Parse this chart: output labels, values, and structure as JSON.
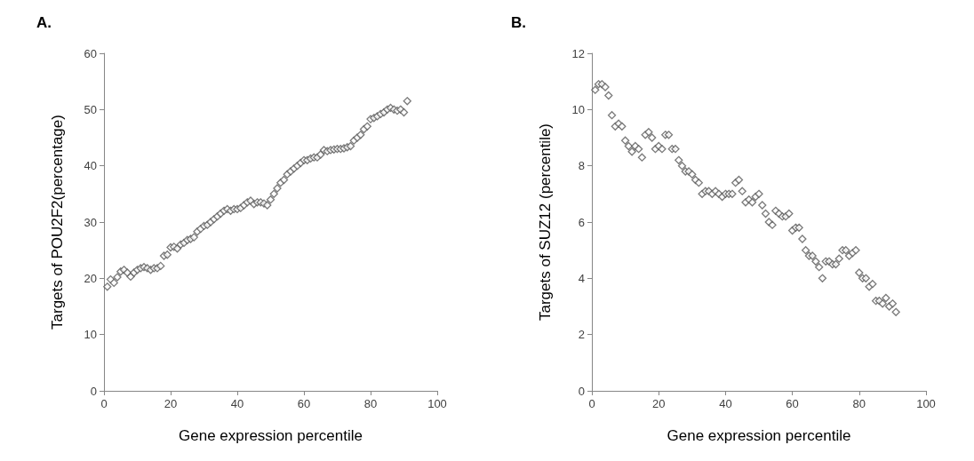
{
  "chart_data": [
    {
      "type": "scatter",
      "title": "A.",
      "xlabel": "Gene expression percentile",
      "ylabel": "Targets of POU2F2(percentage)",
      "marker": "diamond",
      "grid": false,
      "xlim": [
        0,
        100
      ],
      "xticks": [
        0,
        20,
        40,
        60,
        80,
        100
      ],
      "ylim": [
        0,
        60
      ],
      "yticks": [
        0,
        10,
        20,
        30,
        40,
        50,
        60
      ],
      "x": [
        1,
        2,
        3,
        4,
        5,
        6,
        7,
        8,
        9,
        10,
        11,
        12,
        13,
        14,
        15,
        16,
        17,
        18,
        19,
        20,
        21,
        22,
        23,
        24,
        25,
        26,
        27,
        28,
        29,
        30,
        31,
        32,
        33,
        34,
        35,
        36,
        37,
        38,
        39,
        40,
        41,
        42,
        43,
        44,
        45,
        46,
        47,
        48,
        49,
        50,
        51,
        52,
        53,
        54,
        55,
        56,
        57,
        58,
        59,
        60,
        61,
        62,
        63,
        64,
        65,
        66,
        67,
        68,
        69,
        70,
        71,
        72,
        73,
        74,
        75,
        76,
        77,
        78,
        79,
        80,
        81,
        82,
        83,
        84,
        85,
        86,
        87,
        88,
        89,
        90,
        91
      ],
      "series": [
        {
          "color": "#595959",
          "values": [
            18.5,
            19.8,
            19.2,
            20.2,
            21.2,
            21.5,
            21.0,
            20.3,
            21.0,
            21.5,
            21.8,
            22.0,
            21.8,
            21.5,
            21.8,
            21.8,
            22.2,
            24.0,
            24.2,
            25.5,
            25.6,
            25.3,
            26.0,
            26.3,
            26.8,
            27.0,
            27.3,
            28.3,
            28.8,
            29.3,
            29.5,
            30.0,
            30.5,
            31.0,
            31.5,
            32.0,
            32.3,
            32.0,
            32.3,
            32.3,
            32.5,
            33.0,
            33.5,
            33.8,
            33.2,
            33.5,
            33.5,
            33.3,
            33.0,
            34.0,
            35.0,
            36.0,
            37.0,
            37.5,
            38.5,
            39.0,
            39.5,
            40.0,
            40.5,
            41.0,
            41.0,
            41.3,
            41.5,
            41.5,
            42.0,
            42.8,
            42.6,
            42.8,
            42.9,
            43.0,
            43.0,
            43.1,
            43.3,
            43.5,
            44.5,
            45.0,
            45.5,
            46.5,
            47.0,
            48.3,
            48.5,
            48.8,
            49.2,
            49.5,
            50.0,
            50.3,
            50.0,
            49.8,
            50.0,
            49.5,
            51.5
          ]
        }
      ]
    },
    {
      "type": "scatter",
      "title": "B.",
      "xlabel": "Gene expression percentile",
      "ylabel": "Targets of SUZ12 (percentile)",
      "marker": "diamond",
      "grid": false,
      "xlim": [
        0,
        100
      ],
      "xticks": [
        0,
        20,
        40,
        60,
        80,
        100
      ],
      "ylim": [
        0,
        12
      ],
      "yticks": [
        0,
        2,
        4,
        6,
        8,
        10,
        12
      ],
      "x": [
        1,
        2,
        3,
        4,
        5,
        6,
        7,
        8,
        9,
        10,
        11,
        12,
        13,
        14,
        15,
        16,
        17,
        18,
        19,
        20,
        21,
        22,
        23,
        24,
        25,
        26,
        27,
        28,
        29,
        30,
        31,
        32,
        33,
        34,
        35,
        36,
        37,
        38,
        39,
        40,
        41,
        42,
        43,
        44,
        45,
        46,
        47,
        48,
        49,
        50,
        51,
        52,
        53,
        54,
        55,
        56,
        57,
        58,
        59,
        60,
        61,
        62,
        63,
        64,
        65,
        66,
        67,
        68,
        69,
        70,
        71,
        72,
        73,
        74,
        75,
        76,
        77,
        78,
        79,
        80,
        81,
        82,
        83,
        84,
        85,
        86,
        87,
        88,
        89,
        90,
        91
      ],
      "series": [
        {
          "color": "#595959",
          "values": [
            10.7,
            10.9,
            10.9,
            10.8,
            10.5,
            9.8,
            9.4,
            9.5,
            9.4,
            8.9,
            8.7,
            8.5,
            8.7,
            8.6,
            8.3,
            9.1,
            9.2,
            9.0,
            8.6,
            8.7,
            8.6,
            9.1,
            9.1,
            8.6,
            8.6,
            8.2,
            8.0,
            7.8,
            7.8,
            7.7,
            7.5,
            7.4,
            7.0,
            7.1,
            7.1,
            7.0,
            7.1,
            7.0,
            6.9,
            7.0,
            7.0,
            7.0,
            7.4,
            7.5,
            7.1,
            6.7,
            6.8,
            6.7,
            6.9,
            7.0,
            6.6,
            6.3,
            6.0,
            5.9,
            6.4,
            6.3,
            6.2,
            6.2,
            6.3,
            5.7,
            5.8,
            5.8,
            5.4,
            5.0,
            4.8,
            4.8,
            4.6,
            4.4,
            4.0,
            4.6,
            4.6,
            4.5,
            4.5,
            4.7,
            5.0,
            5.0,
            4.8,
            4.9,
            5.0,
            4.2,
            4.0,
            4.0,
            3.7,
            3.8,
            3.2,
            3.2,
            3.1,
            3.3,
            3.0,
            3.1,
            2.8
          ]
        }
      ]
    }
  ]
}
